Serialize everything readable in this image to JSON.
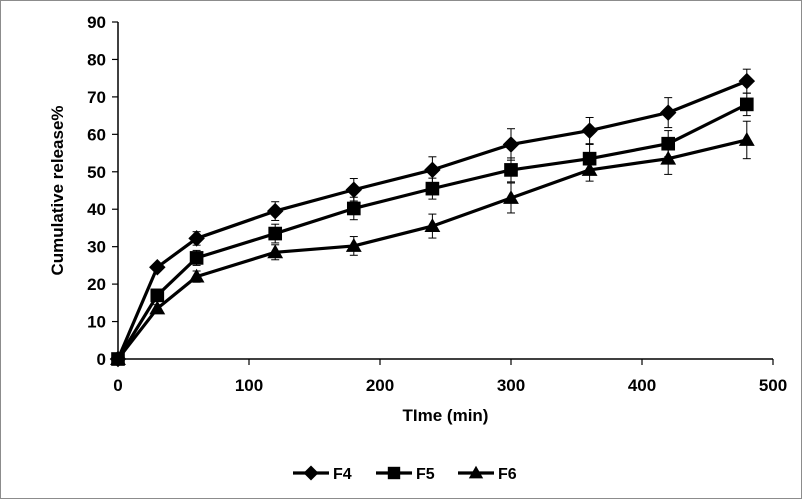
{
  "chart_data": {
    "type": "line",
    "title": "",
    "xlabel": "TIme (min)",
    "ylabel": "Cumulative release%",
    "xlim": [
      0,
      500
    ],
    "ylim": [
      0,
      90
    ],
    "xticks": [
      "0",
      "100",
      "200",
      "300",
      "400",
      "500"
    ],
    "yticks": [
      "0",
      "10",
      "20",
      "30",
      "40",
      "50",
      "60",
      "70",
      "80",
      "90"
    ],
    "grid": false,
    "legend_position": "bottom",
    "x": [
      0,
      30,
      60,
      120,
      180,
      240,
      300,
      360,
      420,
      480
    ],
    "series": [
      {
        "name": "F4",
        "marker": "diamond",
        "color": "#000000",
        "values": [
          0,
          24.5,
          32.2,
          39.5,
          45.2,
          50.5,
          57.3,
          61.0,
          65.8,
          74.2
        ],
        "errors": [
          0,
          1.0,
          1.8,
          2.5,
          3.0,
          3.5,
          4.2,
          3.5,
          4.0,
          3.2
        ]
      },
      {
        "name": "F5",
        "marker": "square",
        "color": "#000000",
        "values": [
          0,
          17.0,
          27.0,
          33.5,
          40.2,
          45.5,
          50.5,
          53.5,
          57.5,
          68.0
        ],
        "errors": [
          0,
          1.5,
          2.0,
          2.5,
          3.0,
          2.8,
          3.2,
          3.8,
          3.5,
          3.0
        ]
      },
      {
        "name": "F6",
        "marker": "triangle",
        "color": "#000000",
        "values": [
          0,
          13.5,
          22.0,
          28.5,
          30.2,
          35.5,
          43.0,
          50.5,
          53.5,
          58.5
        ],
        "errors": [
          0,
          1.0,
          1.5,
          2.0,
          2.5,
          3.2,
          4.0,
          3.0,
          4.2,
          5.0
        ]
      }
    ]
  }
}
